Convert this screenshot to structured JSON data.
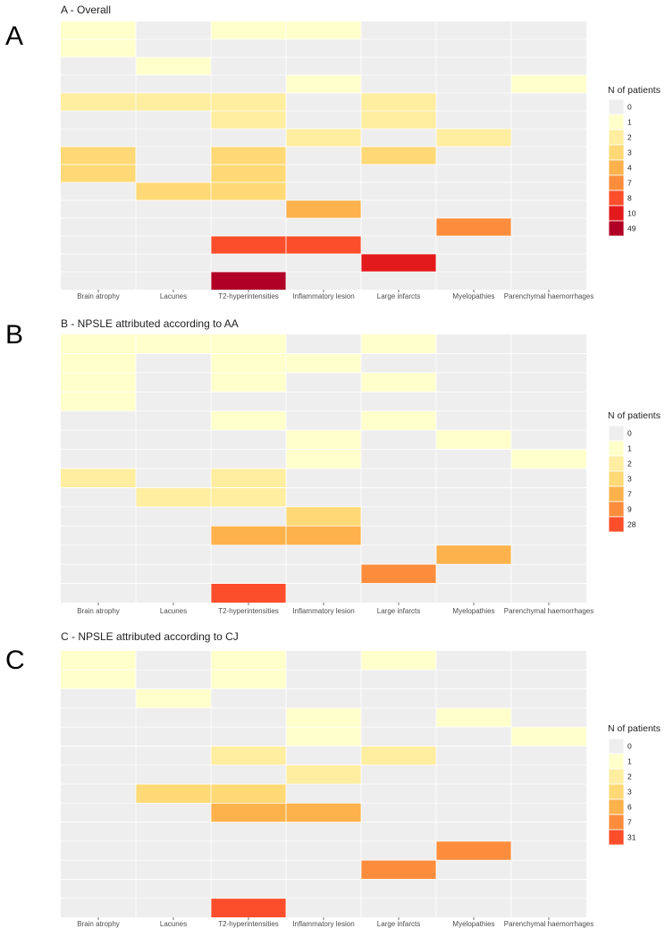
{
  "figure": {
    "colors": {
      "background": "#ffffff",
      "panel": "#efeeee",
      "grid": "#ffffff",
      "levels": [
        "#efeeee",
        "#ffffcc",
        "#ffeda0",
        "#fed976",
        "#feb24c",
        "#fd8d3c",
        "#fc4e2a",
        "#e31a1c",
        "#b10026"
      ]
    }
  },
  "chart_data": [
    {
      "type": "heatmap",
      "panel_letter": "A",
      "title": "A - Overall",
      "x_categories": [
        "Brain atrophy",
        "Lacunes",
        "T2-hyperintensities",
        "Inflammatory lesion",
        "Large infarcts",
        "Myelopathies",
        "Parenchymal haemorrhages"
      ],
      "n_rows": 15,
      "cells": [
        {
          "row": 0,
          "col": 0,
          "value": 1
        },
        {
          "row": 0,
          "col": 2,
          "value": 1
        },
        {
          "row": 0,
          "col": 3,
          "value": 1
        },
        {
          "row": 1,
          "col": 0,
          "value": 1
        },
        {
          "row": 2,
          "col": 1,
          "value": 1
        },
        {
          "row": 3,
          "col": 3,
          "value": 1
        },
        {
          "row": 3,
          "col": 6,
          "value": 1
        },
        {
          "row": 4,
          "col": 0,
          "value": 2
        },
        {
          "row": 4,
          "col": 1,
          "value": 2
        },
        {
          "row": 4,
          "col": 2,
          "value": 2
        },
        {
          "row": 4,
          "col": 4,
          "value": 2
        },
        {
          "row": 5,
          "col": 2,
          "value": 2
        },
        {
          "row": 5,
          "col": 4,
          "value": 2
        },
        {
          "row": 6,
          "col": 3,
          "value": 2
        },
        {
          "row": 6,
          "col": 5,
          "value": 2
        },
        {
          "row": 7,
          "col": 0,
          "value": 3
        },
        {
          "row": 7,
          "col": 2,
          "value": 3
        },
        {
          "row": 7,
          "col": 4,
          "value": 3
        },
        {
          "row": 8,
          "col": 0,
          "value": 3
        },
        {
          "row": 8,
          "col": 2,
          "value": 3
        },
        {
          "row": 9,
          "col": 1,
          "value": 3
        },
        {
          "row": 9,
          "col": 2,
          "value": 3
        },
        {
          "row": 10,
          "col": 3,
          "value": 4
        },
        {
          "row": 11,
          "col": 5,
          "value": 7
        },
        {
          "row": 12,
          "col": 2,
          "value": 8
        },
        {
          "row": 12,
          "col": 3,
          "value": 8
        },
        {
          "row": 13,
          "col": 4,
          "value": 10
        },
        {
          "row": 14,
          "col": 2,
          "value": 49
        }
      ],
      "legend": {
        "title": "N of patients",
        "values": [
          0,
          1,
          2,
          3,
          4,
          7,
          8,
          10,
          49
        ],
        "labels": [
          "0",
          "1",
          "2",
          "3",
          "4",
          "7",
          "8",
          "10",
          "49"
        ]
      }
    },
    {
      "type": "heatmap",
      "panel_letter": "B",
      "title": "B - NPSLE attributed according to AA",
      "x_categories": [
        "Brain atrophy",
        "Lacunes",
        "T2-hyperintensities",
        "Inflammatory lesion",
        "Large infarcts",
        "Myelopathies",
        "Parenchymal haemorrhages"
      ],
      "n_rows": 14,
      "cells": [
        {
          "row": 0,
          "col": 0,
          "value": 1
        },
        {
          "row": 0,
          "col": 1,
          "value": 1
        },
        {
          "row": 0,
          "col": 2,
          "value": 1
        },
        {
          "row": 0,
          "col": 4,
          "value": 1
        },
        {
          "row": 1,
          "col": 0,
          "value": 1
        },
        {
          "row": 1,
          "col": 2,
          "value": 1
        },
        {
          "row": 1,
          "col": 3,
          "value": 1
        },
        {
          "row": 2,
          "col": 0,
          "value": 1
        },
        {
          "row": 2,
          "col": 2,
          "value": 1
        },
        {
          "row": 2,
          "col": 4,
          "value": 1
        },
        {
          "row": 3,
          "col": 0,
          "value": 1
        },
        {
          "row": 4,
          "col": 2,
          "value": 1
        },
        {
          "row": 4,
          "col": 4,
          "value": 1
        },
        {
          "row": 5,
          "col": 3,
          "value": 1
        },
        {
          "row": 5,
          "col": 5,
          "value": 1
        },
        {
          "row": 6,
          "col": 3,
          "value": 1
        },
        {
          "row": 6,
          "col": 6,
          "value": 1
        },
        {
          "row": 7,
          "col": 0,
          "value": 2
        },
        {
          "row": 7,
          "col": 2,
          "value": 2
        },
        {
          "row": 8,
          "col": 1,
          "value": 2
        },
        {
          "row": 8,
          "col": 2,
          "value": 2
        },
        {
          "row": 9,
          "col": 3,
          "value": 3
        },
        {
          "row": 10,
          "col": 2,
          "value": 7
        },
        {
          "row": 10,
          "col": 3,
          "value": 7
        },
        {
          "row": 11,
          "col": 5,
          "value": 7
        },
        {
          "row": 12,
          "col": 4,
          "value": 9
        },
        {
          "row": 13,
          "col": 2,
          "value": 28
        }
      ],
      "legend": {
        "title": "N of patients",
        "values": [
          0,
          1,
          2,
          3,
          7,
          9,
          28
        ],
        "labels": [
          "0",
          "1",
          "2",
          "3",
          "7",
          "9",
          "28"
        ]
      }
    },
    {
      "type": "heatmap",
      "panel_letter": "C",
      "title": "C - NPSLE attributed according to CJ",
      "x_categories": [
        "Brain atrophy",
        "Lacunes",
        "T2-hyperintensities",
        "Inflammatory lesion",
        "Large infarcts",
        "Myelopathies",
        "Parenchymal haemorrhages"
      ],
      "n_rows": 14,
      "cells": [
        {
          "row": 0,
          "col": 0,
          "value": 1
        },
        {
          "row": 0,
          "col": 2,
          "value": 1
        },
        {
          "row": 0,
          "col": 4,
          "value": 1
        },
        {
          "row": 1,
          "col": 0,
          "value": 1
        },
        {
          "row": 1,
          "col": 2,
          "value": 1
        },
        {
          "row": 2,
          "col": 1,
          "value": 1
        },
        {
          "row": 3,
          "col": 3,
          "value": 1
        },
        {
          "row": 3,
          "col": 5,
          "value": 1
        },
        {
          "row": 4,
          "col": 3,
          "value": 1
        },
        {
          "row": 4,
          "col": 6,
          "value": 1
        },
        {
          "row": 5,
          "col": 2,
          "value": 2
        },
        {
          "row": 5,
          "col": 4,
          "value": 2
        },
        {
          "row": 6,
          "col": 3,
          "value": 2
        },
        {
          "row": 7,
          "col": 1,
          "value": 3
        },
        {
          "row": 7,
          "col": 2,
          "value": 3
        },
        {
          "row": 8,
          "col": 2,
          "value": 6
        },
        {
          "row": 8,
          "col": 3,
          "value": 6
        },
        {
          "row": 10,
          "col": 5,
          "value": 7
        },
        {
          "row": 11,
          "col": 4,
          "value": 7
        },
        {
          "row": 13,
          "col": 2,
          "value": 31
        }
      ],
      "legend": {
        "title": "N of patients",
        "values": [
          0,
          1,
          2,
          3,
          6,
          7,
          31
        ],
        "labels": [
          "0",
          "1",
          "2",
          "3",
          "6",
          "7",
          "31"
        ]
      }
    }
  ]
}
